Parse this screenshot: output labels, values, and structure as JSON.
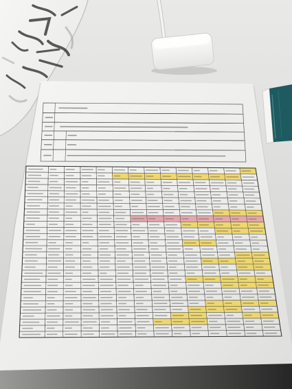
{
  "colors": {
    "desk": "#dcdcda",
    "paper": "#f1f1ef",
    "ink": "#3b3b3b",
    "notebook": "#1d5b60",
    "adapter": "#f7f7f5",
    "highlight_yellow": "#eed457",
    "highlight_pink": "#e39aa3",
    "shadow": "#2f2f2f"
  },
  "big_table": {
    "cells": [
      [
        0,
        0,
        0,
        0,
        0,
        0,
        0,
        0,
        0,
        0,
        0,
        0,
        0,
        1
      ],
      [
        0,
        0,
        0,
        0,
        0,
        1,
        1,
        1,
        1,
        1,
        1,
        1,
        1,
        0
      ],
      [
        0,
        0,
        0,
        0,
        0,
        0,
        0,
        0,
        0,
        0,
        0,
        0,
        0,
        0
      ],
      [
        0,
        0,
        0,
        0,
        0,
        0,
        0,
        0,
        0,
        0,
        0,
        0,
        0,
        0
      ],
      [
        0,
        0,
        0,
        0,
        0,
        0,
        0,
        0,
        0,
        0,
        0,
        0,
        0,
        0
      ],
      [
        0,
        0,
        0,
        0,
        0,
        0,
        0,
        0,
        0,
        0,
        0,
        0,
        0,
        0
      ],
      [
        0,
        0,
        0,
        0,
        0,
        0,
        0,
        0,
        0,
        0,
        0,
        0,
        0,
        0
      ],
      [
        0,
        0,
        0,
        0,
        0,
        0,
        0,
        0,
        0,
        0,
        0,
        1,
        1,
        1
      ],
      [
        0,
        0,
        0,
        0,
        0,
        0,
        2,
        2,
        2,
        2,
        2,
        2,
        2,
        2
      ],
      [
        0,
        0,
        0,
        0,
        0,
        0,
        0,
        0,
        0,
        1,
        1,
        1,
        1,
        1
      ],
      [
        0,
        0,
        0,
        0,
        0,
        0,
        0,
        0,
        0,
        0,
        0,
        1,
        1,
        1
      ],
      [
        0,
        0,
        0,
        0,
        0,
        0,
        0,
        0,
        0,
        0,
        0,
        0,
        0,
        0
      ],
      [
        0,
        0,
        0,
        0,
        0,
        0,
        0,
        0,
        0,
        1,
        1,
        0,
        0,
        0
      ],
      [
        0,
        0,
        0,
        0,
        0,
        0,
        0,
        0,
        0,
        0,
        0,
        0,
        0,
        0
      ],
      [
        0,
        0,
        0,
        0,
        0,
        0,
        0,
        0,
        0,
        0,
        0,
        0,
        1,
        1
      ],
      [
        0,
        0,
        0,
        0,
        0,
        0,
        0,
        0,
        0,
        0,
        1,
        1,
        1,
        1
      ],
      [
        0,
        0,
        0,
        0,
        0,
        0,
        0,
        0,
        0,
        0,
        0,
        0,
        1,
        1
      ],
      [
        0,
        0,
        0,
        0,
        0,
        0,
        0,
        0,
        0,
        0,
        0,
        0,
        0,
        0
      ],
      [
        0,
        0,
        0,
        0,
        0,
        0,
        0,
        0,
        0,
        1,
        1,
        1,
        1,
        1
      ],
      [
        0,
        0,
        0,
        0,
        0,
        0,
        0,
        0,
        0,
        0,
        0,
        1,
        1,
        1
      ],
      [
        0,
        0,
        0,
        0,
        0,
        0,
        0,
        0,
        0,
        0,
        0,
        0,
        0,
        0
      ],
      [
        0,
        0,
        0,
        0,
        0,
        0,
        0,
        0,
        0,
        0,
        0,
        0,
        0,
        0
      ],
      [
        0,
        0,
        0,
        0,
        0,
        0,
        0,
        0,
        0,
        0,
        1,
        1,
        1,
        1
      ],
      [
        0,
        0,
        0,
        0,
        0,
        0,
        0,
        0,
        0,
        1,
        1,
        1,
        0,
        0
      ],
      [
        0,
        0,
        0,
        0,
        0,
        0,
        0,
        0,
        1,
        1,
        0,
        0,
        1,
        1
      ],
      [
        0,
        0,
        0,
        0,
        0,
        0,
        0,
        1,
        1,
        1,
        0,
        0,
        0,
        0
      ],
      [
        0,
        0,
        0,
        0,
        0,
        0,
        0,
        0,
        0,
        0,
        0,
        0,
        0,
        0
      ],
      [
        0,
        0,
        0,
        0,
        0,
        0,
        0,
        0,
        0,
        0,
        0,
        0,
        0,
        0
      ]
    ]
  }
}
